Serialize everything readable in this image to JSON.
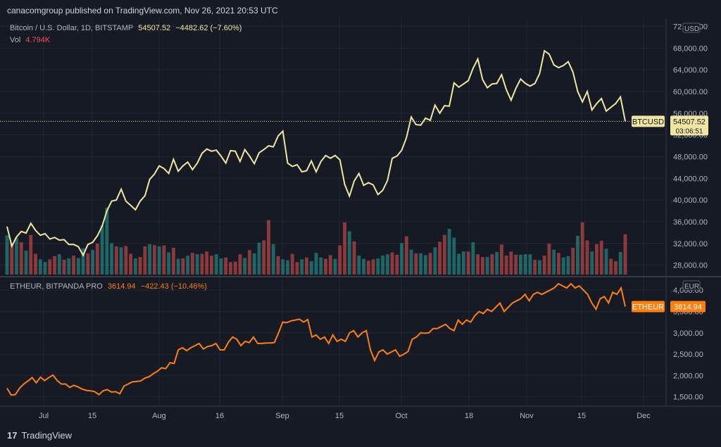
{
  "header": {
    "published": "canacomgroup published on TradingView.com, Nov 26, 2021 20:53 UTC"
  },
  "btc": {
    "title": "Bitcoin / U.S. Dollar, 1D, BITSTAMP",
    "price": "54507.52",
    "change": "−4482.62 (−7.60%)",
    "vol_label": "Vol",
    "vol_value": "4.794K",
    "ticker": "BTCUSD",
    "price_tag": "54507.52",
    "countdown": "03:06:51",
    "currency": "USD",
    "line_color": "#f0e6a0"
  },
  "eth": {
    "title": "ETHEUR, BITPANDA PRO",
    "price": "3614.94",
    "change": "−422.43 (−10.46%)",
    "ticker": "ETHEUR",
    "price_tag": "3614.94",
    "currency": "EUR",
    "line_color": "#ff7f0e"
  },
  "footer": {
    "brand": "TradingView"
  },
  "chart_data": [
    {
      "type": "line",
      "title": "Bitcoin / U.S. Dollar, 1D, BITSTAMP",
      "unit": "USD",
      "x_ticks": [
        "Jul",
        "15",
        "Aug",
        "16",
        "Sep",
        "15",
        "Oct",
        "18",
        "Nov",
        "15",
        "Dec"
      ],
      "y_ticks": [
        28000,
        32000,
        36000,
        40000,
        44000,
        48000,
        52000,
        56000,
        60000,
        64000,
        68000,
        72000
      ],
      "ylim": [
        26000,
        73500
      ],
      "series": [
        {
          "values": [
            35100,
            31500,
            33200,
            34200,
            33900,
            35700,
            34400,
            33500,
            33800,
            32800,
            33100,
            32600,
            32700,
            31800,
            31800,
            31400,
            29800,
            31800,
            32200,
            33400,
            35200,
            38000,
            39800,
            40000,
            42000,
            39800,
            39000,
            38200,
            39800,
            40800,
            43800,
            44800,
            46300,
            45800,
            44900,
            47500,
            45300,
            46300,
            47000,
            45600,
            46800,
            48600,
            49400,
            49000,
            49200,
            48100,
            46800,
            49100,
            49000,
            47100,
            49300,
            48100,
            46700,
            48700,
            49300,
            50000,
            49800,
            51800,
            52700,
            46800,
            46200,
            46500,
            45200,
            45400,
            47200,
            45200,
            47100,
            48200,
            47700,
            48200,
            47400,
            42900,
            40700,
            43500,
            44900,
            42700,
            43200,
            42800,
            41000,
            41800,
            43600,
            47700,
            48100,
            49200,
            51500,
            55300,
            53900,
            53800,
            55100,
            54700,
            57500,
            56000,
            57400,
            57300,
            61600,
            60800,
            61400,
            62000,
            64300,
            66000,
            62200,
            60700,
            61400,
            61500,
            63100,
            60300,
            58400,
            60600,
            62300,
            61500,
            61000,
            61500,
            63300,
            67500,
            66900,
            64900,
            64400,
            64800,
            65500,
            63600,
            60000,
            58100,
            60000,
            56600,
            57800,
            58700,
            56400,
            57100,
            57800,
            59000,
            54507.52
          ]
        }
      ]
    },
    {
      "type": "bar",
      "title": "Vol",
      "last_value": "4.794K",
      "note": "daily volume bars, colored green (up day) / red (down day), relative heights",
      "values": [
        8.5,
        6.8,
        8.0,
        7.0,
        5.2,
        8.6,
        4.5,
        3.3,
        2.7,
        3.3,
        4.0,
        4.4,
        3.2,
        3.5,
        4.1,
        3.6,
        5.7,
        4.6,
        5.3,
        6.7,
        10.7,
        14.5,
        6.8,
        6.1,
        5.9,
        6.2,
        4.5,
        3.5,
        3.8,
        6.1,
        6.6,
        6.4,
        6.1,
        6.3,
        4.8,
        5.8,
        3.4,
        3.5,
        4.1,
        4.7,
        4.4,
        4.5,
        5.0,
        4.1,
        4.4,
        3.5,
        3.7,
        2.7,
        2.8,
        4.4,
        3.6,
        5.3,
        4.6,
        6.9,
        7.4,
        11.8,
        6.6,
        4.0,
        3.3,
        3.1,
        4.5,
        2.7,
        3.3,
        3.7,
        2.9,
        4.7,
        3.7,
        3.4,
        4.2,
        3.4,
        6.3,
        11.3,
        9.4,
        7.2,
        4.1,
        3.4,
        3.0,
        3.3,
        3.5,
        4.1,
        4.4,
        4.8,
        4.3,
        6.8,
        8.3,
        5.4,
        4.6,
        4.6,
        4.2,
        4.7,
        5.9,
        7.1,
        8.6,
        9.9,
        8.0,
        4.5,
        5.0,
        5.0,
        7.0,
        4.4,
        3.8,
        3.8,
        4.4,
        4.9,
        6.5,
        4.1,
        5.0,
        4.3,
        4.3,
        4.4,
        4.4,
        3.2,
        3.1,
        4.1,
        6.7,
        5.4,
        4.7,
        3.7,
        4.0,
        5.8,
        8.4,
        11.3,
        7.4,
        5.0,
        6.6,
        7.3,
        5.6,
        3.4,
        2.9,
        4.9,
        8.7
      ],
      "colors": [
        "g",
        "r",
        "g",
        "r",
        "g",
        "r",
        "r",
        "g",
        "g",
        "r",
        "r",
        "g",
        "r",
        "g",
        "r",
        "g",
        "g",
        "r",
        "g",
        "r",
        "g",
        "g",
        "g",
        "r",
        "g",
        "r",
        "r",
        "g",
        "r",
        "r",
        "g",
        "r",
        "g",
        "r",
        "g",
        "r",
        "g",
        "r",
        "g",
        "r",
        "g",
        "r",
        "r",
        "r",
        "g",
        "g",
        "r",
        "r",
        "r",
        "r",
        "g",
        "r",
        "g",
        "g",
        "r",
        "r",
        "g",
        "r",
        "g",
        "g",
        "r",
        "r",
        "g",
        "r",
        "g",
        "g",
        "g",
        "r",
        "r",
        "g",
        "r",
        "r",
        "g",
        "r",
        "g",
        "g",
        "r",
        "r",
        "g",
        "g",
        "g",
        "r",
        "r",
        "g",
        "r",
        "g",
        "r",
        "g",
        "g",
        "r",
        "g",
        "r",
        "r",
        "g",
        "g",
        "g",
        "g",
        "r",
        "g",
        "r",
        "r",
        "g",
        "r",
        "g",
        "r",
        "r",
        "r",
        "r",
        "g",
        "g",
        "g",
        "r",
        "g",
        "r",
        "r",
        "g",
        "r",
        "g",
        "g",
        "r",
        "g",
        "r",
        "r",
        "g",
        "r",
        "r",
        "g",
        "r",
        "r",
        "g",
        "r"
      ]
    },
    {
      "type": "line",
      "title": "ETHEUR, BITPANDA PRO",
      "unit": "EUR",
      "x_ticks": [
        "Jul",
        "15",
        "Aug",
        "16",
        "Sep",
        "15",
        "Oct",
        "18",
        "Nov",
        "15",
        "Dec"
      ],
      "y_ticks": [
        1500,
        2000,
        2500,
        3000,
        3500,
        4000
      ],
      "ylim": [
        1280,
        4300
      ],
      "series": [
        {
          "values": [
            1700,
            1540,
            1550,
            1700,
            1800,
            1870,
            1950,
            1830,
            1960,
            1880,
            1950,
            2010,
            1880,
            1800,
            1800,
            1720,
            1770,
            1730,
            1680,
            1650,
            1640,
            1620,
            1550,
            1640,
            1670,
            1610,
            1620,
            1570,
            1750,
            1800,
            1850,
            1860,
            1870,
            1940,
            1970,
            2040,
            2100,
            2180,
            2160,
            2300,
            2280,
            2600,
            2650,
            2580,
            2650,
            2700,
            2750,
            2620,
            2680,
            2700,
            2750,
            2600,
            2600,
            2780,
            2900,
            2850,
            2700,
            2800,
            2770,
            2900,
            2750,
            2750,
            2760,
            2760,
            2770,
            3000,
            3250,
            3240,
            3280,
            3300,
            3320,
            3250,
            3310,
            2900,
            2950,
            2850,
            2900,
            2750,
            2950,
            2800,
            2850,
            2800,
            3000,
            3050,
            2900,
            3000,
            3050,
            2600,
            2350,
            2550,
            2600,
            2500,
            2550,
            2600,
            2450,
            2500,
            2560,
            2850,
            2900,
            3000,
            2990,
            3000,
            3100,
            3100,
            3150,
            3200,
            3100,
            3050,
            3300,
            3200,
            3300,
            3250,
            3400,
            3500,
            3450,
            3550,
            3500,
            3600,
            3700,
            3500,
            3600,
            3700,
            3750,
            3800,
            3900,
            3750,
            3900,
            3950,
            3900,
            3950,
            4000,
            4050,
            4150,
            4100,
            4050,
            4150,
            4050,
            4100,
            4000,
            3900,
            3700,
            3550,
            3800,
            3850,
            3700,
            3950,
            3900,
            4050,
            3614.94
          ]
        }
      ]
    }
  ]
}
